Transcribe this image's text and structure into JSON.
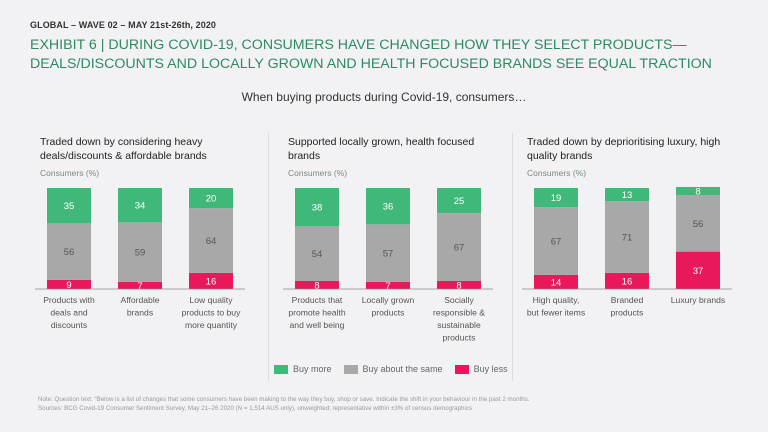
{
  "header": {
    "wave": "GLOBAL – WAVE  02 – MAY 21st-26th, 2020",
    "title_line1": "EXHIBIT 6 | DURING COVID-19, CONSUMERS HAVE CHANGED HOW THEY SELECT PRODUCTS—",
    "title_line2": "DEALS/DISCOUNTS AND LOCALLY GROWN AND HEALTH FOCUSED BRANDS SEE EQUAL TRACTION",
    "subtitle": "When buying products during Covid-19, consumers…"
  },
  "colors": {
    "buy_more": "#3fb87a",
    "same": "#a8a8a8",
    "buy_less": "#e8185a"
  },
  "chart_data": [
    {
      "type": "bar",
      "stacked": true,
      "title": "Traded down by considering heavy deals/discounts & affordable brands",
      "ylabel": "Consumers (%)",
      "ylim": [
        0,
        100
      ],
      "categories": [
        [
          "Products with",
          "deals and",
          "discounts"
        ],
        [
          "Affordable",
          "brands"
        ],
        [
          "Low quality",
          "products to buy",
          "more quantity"
        ]
      ],
      "series": [
        {
          "name": "Buy less",
          "values": [
            9,
            7,
            16
          ]
        },
        {
          "name": "Buy about the same",
          "values": [
            56,
            59,
            64
          ]
        },
        {
          "name": "Buy more",
          "values": [
            35,
            34,
            20
          ]
        }
      ]
    },
    {
      "type": "bar",
      "stacked": true,
      "title": "Supported locally grown, health focused brands",
      "ylabel": "Consumers (%)",
      "ylim": [
        0,
        100
      ],
      "categories": [
        [
          "Products that",
          "promote health",
          "and well being"
        ],
        [
          "Locally grown",
          "products"
        ],
        [
          "Socially",
          "responsible &",
          "sustainable",
          "products"
        ]
      ],
      "series": [
        {
          "name": "Buy less",
          "values": [
            8,
            7,
            8
          ]
        },
        {
          "name": "Buy about the same",
          "values": [
            54,
            57,
            67
          ]
        },
        {
          "name": "Buy more",
          "values": [
            38,
            36,
            25
          ]
        }
      ]
    },
    {
      "type": "bar",
      "stacked": true,
      "title": "Traded down by deprioritising luxury, high quality brands",
      "ylabel": "Consumers (%)",
      "ylim": [
        0,
        100
      ],
      "categories": [
        [
          "High quality,",
          "but fewer items"
        ],
        [
          "Branded",
          "products"
        ],
        [
          "Luxury brands"
        ]
      ],
      "series": [
        {
          "name": "Buy less",
          "values": [
            14,
            16,
            37
          ]
        },
        {
          "name": "Buy about the same",
          "values": [
            67,
            71,
            56
          ]
        },
        {
          "name": "Buy more",
          "values": [
            19,
            13,
            8
          ]
        }
      ]
    }
  ],
  "legend": [
    {
      "label": "Buy more",
      "color": "#3fb87a"
    },
    {
      "label": "Buy about the same",
      "color": "#a8a8a8"
    },
    {
      "label": "Buy less",
      "color": "#e8185a"
    }
  ],
  "note": {
    "line1": "Note: Question text: \"Below is a list of changes that some consumers have been making to the way they buy, shop or save. Indicate the shift in your behaviour in the past 2 months.",
    "line2": "Sources: BCG Covid-19 Consumer Sentiment Survey, May 21–26 2020 (N = 1,514 AUS only), unweighted; representative within ±3% of census demographics"
  }
}
